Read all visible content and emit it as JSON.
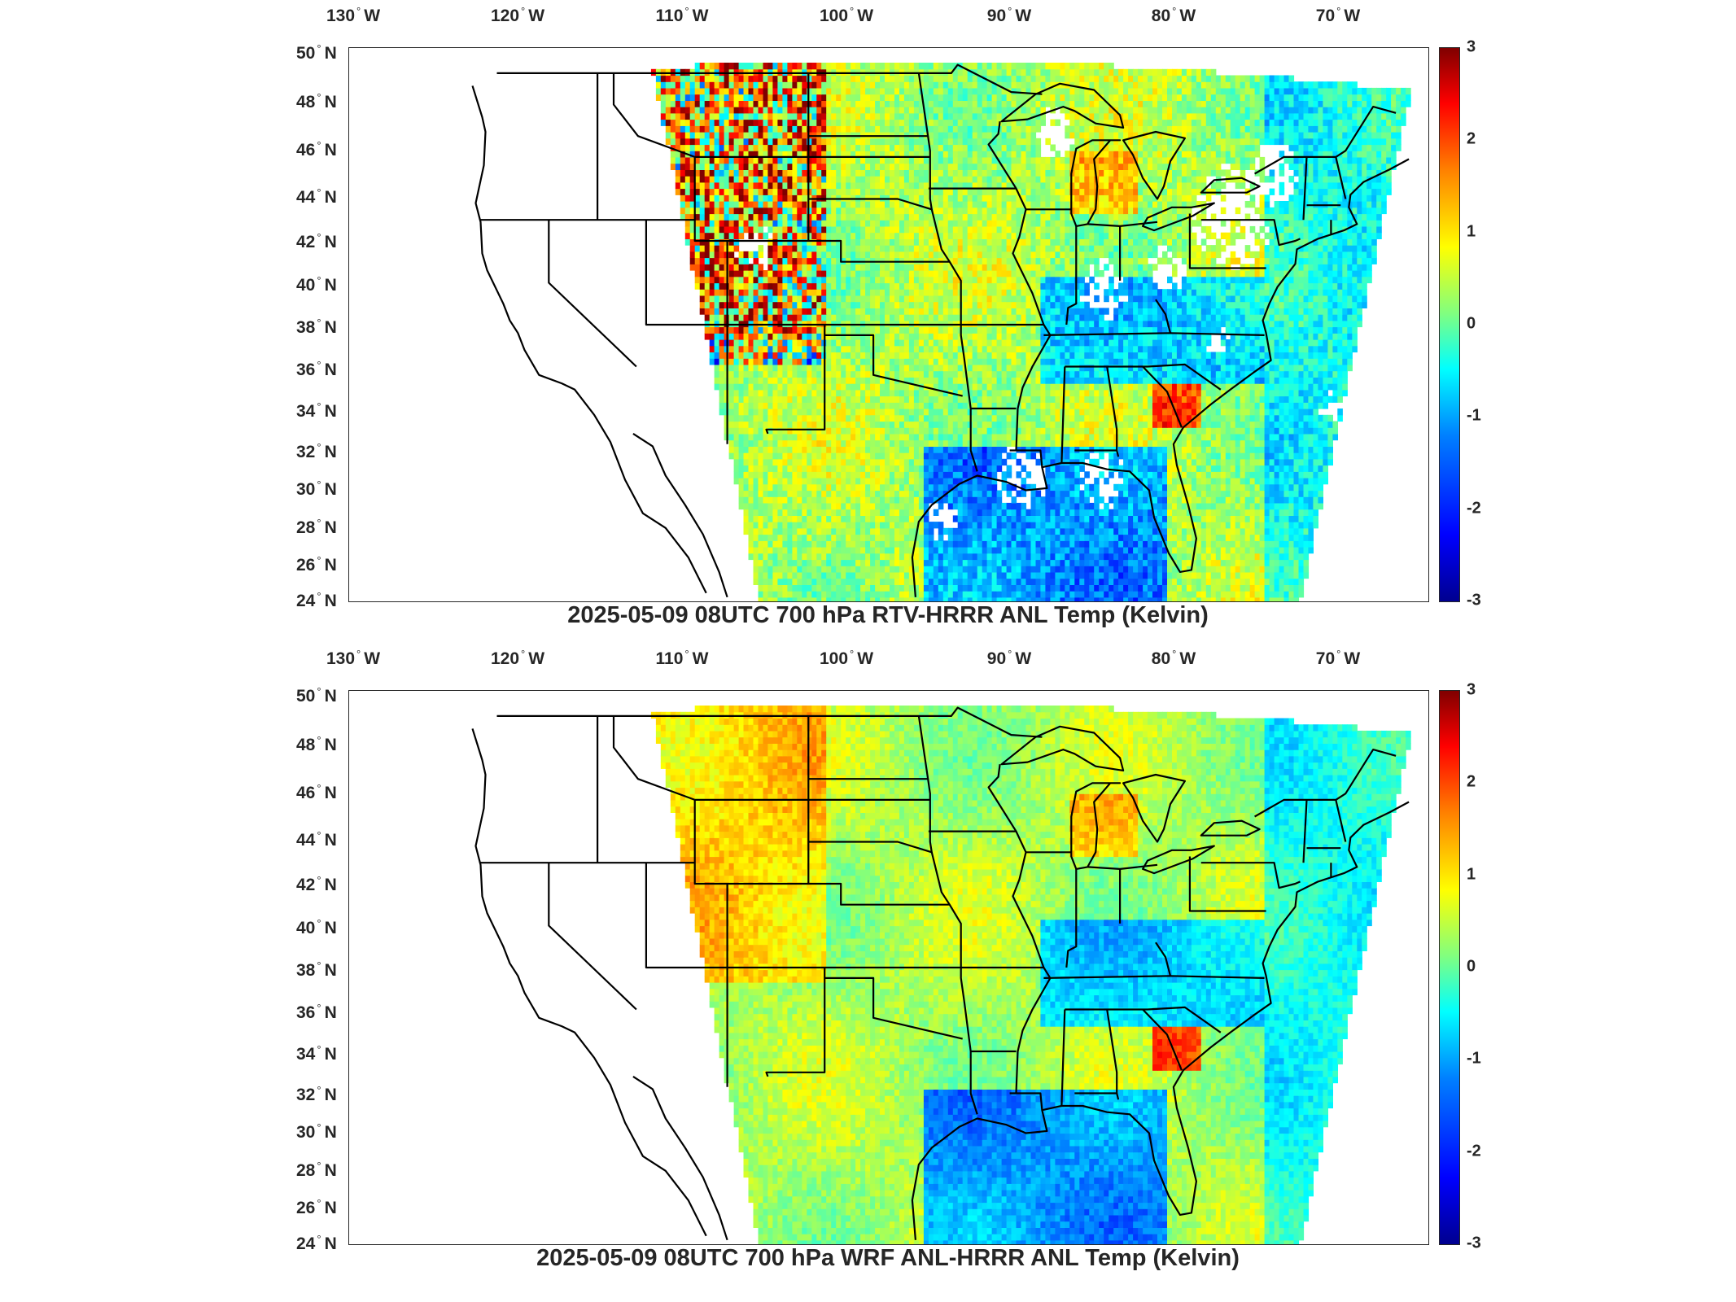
{
  "panels": [
    {
      "title": "2025-05-09 08UTC 700 hPa RTV-HRRR ANL Temp (Kelvin)",
      "dominant": "mixed",
      "white_gaps": true
    },
    {
      "title": "2025-05-09 08UTC 700 hPa WRF ANL-HRRR ANL Temp (Kelvin)",
      "dominant": "smooth",
      "white_gaps": false
    }
  ],
  "lon_ticks": [
    {
      "deg": "130",
      "hemi": "W"
    },
    {
      "deg": "120",
      "hemi": "W"
    },
    {
      "deg": "110",
      "hemi": "W"
    },
    {
      "deg": "100",
      "hemi": "W"
    },
    {
      "deg": "90",
      "hemi": "W"
    },
    {
      "deg": "80",
      "hemi": "W"
    },
    {
      "deg": "70",
      "hemi": "W"
    }
  ],
  "lat_ticks": [
    {
      "deg": "50",
      "hemi": "N"
    },
    {
      "deg": "48",
      "hemi": "N"
    },
    {
      "deg": "46",
      "hemi": "N"
    },
    {
      "deg": "44",
      "hemi": "N"
    },
    {
      "deg": "42",
      "hemi": "N"
    },
    {
      "deg": "40",
      "hemi": "N"
    },
    {
      "deg": "38",
      "hemi": "N"
    },
    {
      "deg": "36",
      "hemi": "N"
    },
    {
      "deg": "34",
      "hemi": "N"
    },
    {
      "deg": "32",
      "hemi": "N"
    },
    {
      "deg": "30",
      "hemi": "N"
    },
    {
      "deg": "28",
      "hemi": "N"
    },
    {
      "deg": "26",
      "hemi": "N"
    },
    {
      "deg": "24",
      "hemi": "N"
    }
  ],
  "colorbar": {
    "ticks": [
      "3",
      "2",
      "1",
      "0",
      "-1",
      "-2",
      "-3"
    ],
    "range": [
      -3,
      3
    ],
    "colormap": "jet"
  },
  "colors": {
    "text": "#262626",
    "boundary": "#000000",
    "background": "#ffffff"
  }
}
